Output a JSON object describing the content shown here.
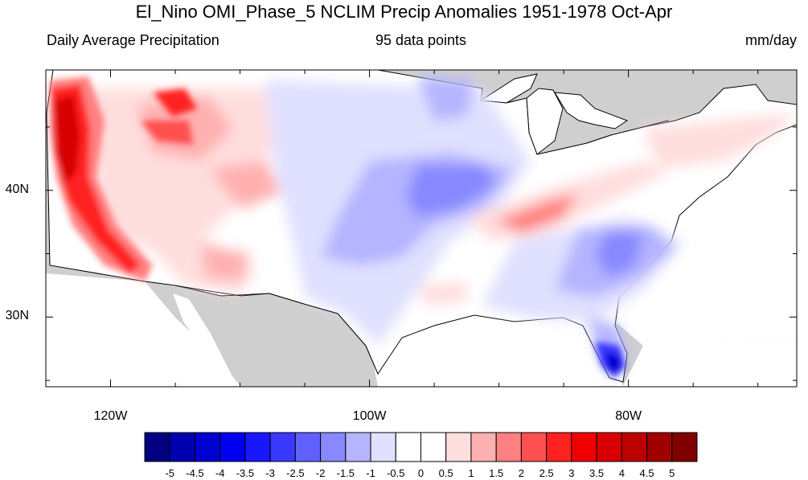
{
  "title": "El_Nino OMI_Phase_5 NCLIM Precip Anomalies 1951-1978 Oct-Apr",
  "subtitle_left": "Daily Average Precipitation",
  "subtitle_center": "95 data points",
  "subtitle_right": "mm/day",
  "lat_labels": [
    {
      "text": "40N",
      "value": 40
    },
    {
      "text": "30N",
      "value": 30
    }
  ],
  "lon_labels": [
    {
      "text": "120W",
      "value": -120
    },
    {
      "text": "100W",
      "value": -100
    },
    {
      "text": "80W",
      "value": -80
    }
  ],
  "map_extent": {
    "lon_min": -125,
    "lon_max": -67,
    "lat_min": 24.5,
    "lat_max": 49.5
  },
  "colorbar": {
    "colors": [
      "#000080",
      "#0000b0",
      "#0000d0",
      "#0000f0",
      "#1818ff",
      "#3838ff",
      "#6060ff",
      "#8888ff",
      "#b4b4ff",
      "#e0e0ff",
      "#ffffff",
      "#ffffff",
      "#ffdede",
      "#ffb0b0",
      "#ff8080",
      "#ff5050",
      "#ff2020",
      "#f00000",
      "#d80000",
      "#bc0000",
      "#a00000",
      "#800000"
    ],
    "labels": [
      "-5",
      "-4.5",
      "-4",
      "-3.5",
      "-3",
      "-2.5",
      "-2",
      "-1.5",
      "-1",
      "-0.5",
      "0",
      "0.5",
      "1",
      "1.5",
      "2",
      "2.5",
      "3",
      "3.5",
      "4",
      "4.5",
      "5"
    ]
  }
}
